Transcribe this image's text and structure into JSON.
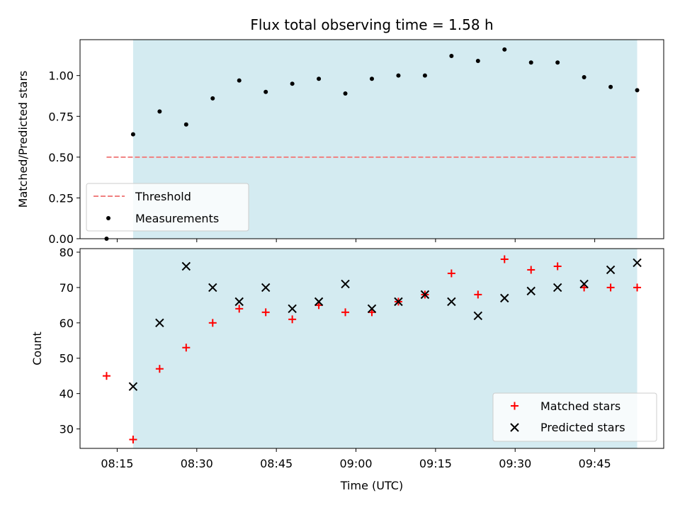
{
  "chart_data": [
    {
      "type": "scatter",
      "title": "Flux total observing time = 1.58 h",
      "xlabel": "",
      "ylabel": "Matched/Predicted stars",
      "ylim": [
        0,
        1.22
      ],
      "xlim": [
        "08:08",
        "09:58"
      ],
      "ytick_labels": [
        "0.00",
        "0.25",
        "0.50",
        "0.75",
        "1.00"
      ],
      "yticks": [
        0,
        0.25,
        0.5,
        0.75,
        1.0
      ],
      "shaded_span": [
        "08:18",
        "09:53"
      ],
      "shaded_color": "#d4ebf1",
      "threshold": {
        "name": "Threshold",
        "value": 0.5,
        "x_range": [
          "08:13",
          "09:53"
        ],
        "color": "#f08080"
      },
      "series": [
        {
          "name": "Measurements",
          "color": "#000000",
          "x": [
            "08:13",
            "08:18",
            "08:23",
            "08:28",
            "08:33",
            "08:38",
            "08:43",
            "08:48",
            "08:53",
            "08:58",
            "09:03",
            "09:08",
            "09:13",
            "09:18",
            "09:23",
            "09:28",
            "09:33",
            "09:38",
            "09:43",
            "09:48",
            "09:53"
          ],
          "y": [
            0.0,
            0.64,
            0.78,
            0.7,
            0.86,
            0.97,
            0.9,
            0.95,
            0.98,
            0.89,
            0.98,
            1.0,
            1.0,
            1.12,
            1.09,
            1.16,
            1.08,
            1.08,
            0.99,
            0.93,
            0.91
          ]
        }
      ],
      "legend": {
        "position": "lower-left",
        "entries": [
          "Threshold",
          "Measurements"
        ]
      }
    },
    {
      "type": "scatter",
      "title": "",
      "xlabel": "Time (UTC)",
      "ylabel": "Count",
      "ylim": [
        24.5,
        81
      ],
      "xlim": [
        "08:08",
        "09:58"
      ],
      "yticks": [
        30,
        40,
        50,
        60,
        70,
        80
      ],
      "ytick_labels": [
        "30",
        "40",
        "50",
        "60",
        "70",
        "80"
      ],
      "xticks": [
        "08:15",
        "08:30",
        "08:45",
        "09:00",
        "09:15",
        "09:30",
        "09:45"
      ],
      "xtick_labels": [
        "08:15",
        "08:30",
        "08:45",
        "09:00",
        "09:15",
        "09:30",
        "09:45"
      ],
      "shaded_span": [
        "08:18",
        "09:53"
      ],
      "shaded_color": "#d4ebf1",
      "series": [
        {
          "name": "Matched stars",
          "marker": "plus",
          "color": "#ff0000",
          "x": [
            "08:13",
            "08:18",
            "08:23",
            "08:28",
            "08:33",
            "08:38",
            "08:43",
            "08:48",
            "08:53",
            "08:58",
            "09:03",
            "09:08",
            "09:13",
            "09:18",
            "09:23",
            "09:28",
            "09:33",
            "09:38",
            "09:43",
            "09:48",
            "09:53"
          ],
          "y": [
            45,
            27,
            47,
            53,
            60,
            64,
            63,
            61,
            65,
            63,
            63,
            66,
            68,
            74,
            68,
            78,
            75,
            76,
            70,
            70,
            70
          ]
        },
        {
          "name": "Predicted stars",
          "marker": "x",
          "color": "#000000",
          "x": [
            "08:18",
            "08:23",
            "08:28",
            "08:33",
            "08:38",
            "08:43",
            "08:48",
            "08:53",
            "08:58",
            "09:03",
            "09:08",
            "09:13",
            "09:18",
            "09:23",
            "09:28",
            "09:33",
            "09:38",
            "09:43",
            "09:48",
            "09:53"
          ],
          "y": [
            42,
            60,
            76,
            70,
            66,
            70,
            64,
            66,
            71,
            64,
            66,
            68,
            66,
            62,
            67,
            69,
            70,
            71,
            75,
            77
          ]
        }
      ],
      "legend": {
        "position": "lower-right",
        "entries": [
          "Matched stars",
          "Predicted stars"
        ]
      }
    }
  ]
}
